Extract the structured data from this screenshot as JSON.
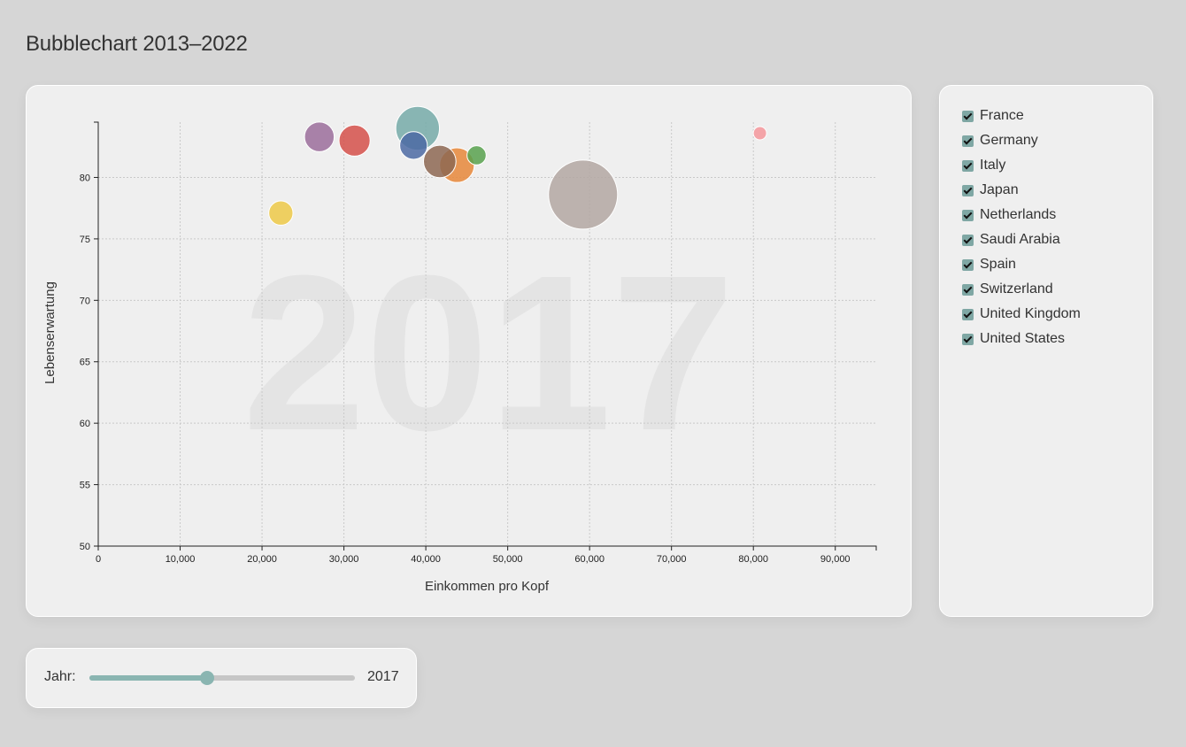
{
  "page": {
    "title": "Bubblechart 2013–2022"
  },
  "chart_data": {
    "type": "scatter",
    "year_label": "2017",
    "xlabel": "Einkommen pro Kopf",
    "ylabel": "Lebenserwartung",
    "xlim": [
      0,
      95000
    ],
    "ylim": [
      50,
      84.5
    ],
    "x_ticks": [
      0,
      10000,
      20000,
      30000,
      40000,
      50000,
      60000,
      70000,
      80000,
      90000
    ],
    "x_tick_labels": [
      "0",
      "10,000",
      "20,000",
      "30,000",
      "40,000",
      "50,000",
      "60,000",
      "70,000",
      "80,000",
      "90,000"
    ],
    "y_ticks": [
      50,
      55,
      60,
      65,
      70,
      75,
      80
    ],
    "y_tick_labels": [
      "50",
      "55",
      "60",
      "65",
      "70",
      "75",
      "80"
    ],
    "grid": true,
    "bubble_size": "population",
    "points": [
      {
        "color": "#9b6d9b",
        "x": 27000,
        "y": 83.3,
        "population": 60
      },
      {
        "color": "#d5504a",
        "x": 31300,
        "y": 83.0,
        "population": 66
      },
      {
        "color": "#4c6aa3",
        "x": 38500,
        "y": 82.6,
        "population": 52
      },
      {
        "color": "#76aaa8",
        "x": 39000,
        "y": 84.0,
        "population": 130
      },
      {
        "color": "#e6873a",
        "x": 43800,
        "y": 81.0,
        "population": 82
      },
      {
        "color": "#8d6752",
        "x": 41700,
        "y": 81.3,
        "population": 72
      },
      {
        "color": "#58a14e",
        "x": 46200,
        "y": 81.8,
        "population": 25
      },
      {
        "color": "#b3a7a2",
        "x": 59200,
        "y": 78.6,
        "population": 325
      },
      {
        "color": "#edc948",
        "x": 22300,
        "y": 77.1,
        "population": 40
      },
      {
        "color": "#f4969b",
        "x": 80800,
        "y": 83.6,
        "population": 12
      }
    ]
  },
  "legend": {
    "items": [
      {
        "label": "France",
        "checked": true
      },
      {
        "label": "Germany",
        "checked": true
      },
      {
        "label": "Italy",
        "checked": true
      },
      {
        "label": "Japan",
        "checked": true
      },
      {
        "label": "Netherlands",
        "checked": true
      },
      {
        "label": "Saudi Arabia",
        "checked": true
      },
      {
        "label": "Spain",
        "checked": true
      },
      {
        "label": "Switzerland",
        "checked": true
      },
      {
        "label": "United Kingdom",
        "checked": true
      },
      {
        "label": "United States",
        "checked": true
      }
    ]
  },
  "slider": {
    "label": "Jahr:",
    "value": "2017",
    "min": 2013,
    "max": 2022,
    "current": 2017,
    "color": "#8ab5b1"
  }
}
